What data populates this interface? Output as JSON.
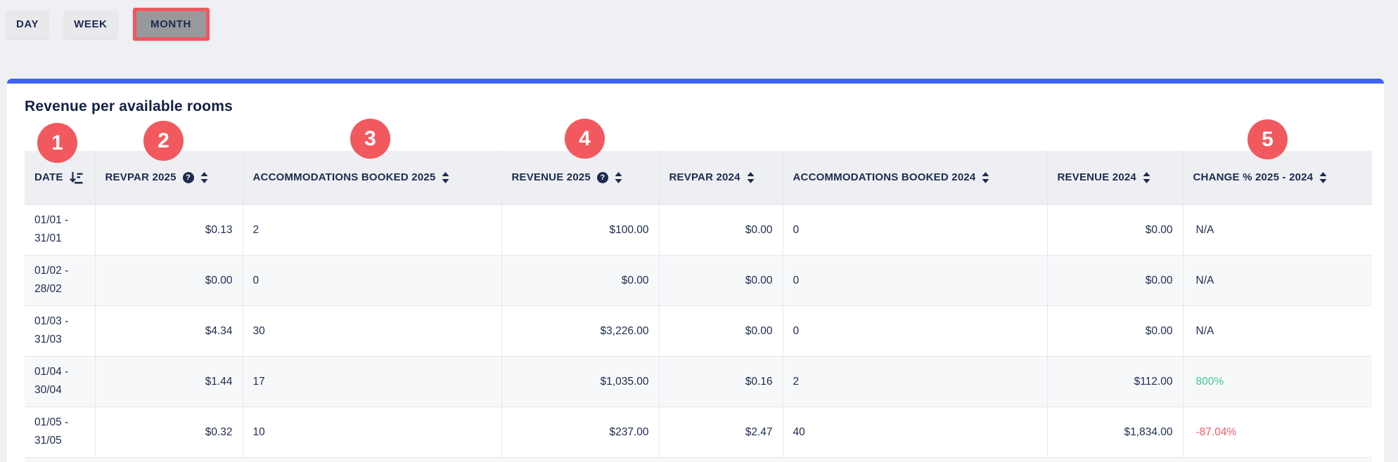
{
  "toolbar": {
    "buttons": [
      {
        "label": "DAY",
        "active": false
      },
      {
        "label": "WEEK",
        "active": false
      },
      {
        "label": "MONTH",
        "active": true
      }
    ]
  },
  "card": {
    "title": "Revenue per available rooms"
  },
  "annotations": [
    "1",
    "2",
    "3",
    "4",
    "5"
  ],
  "table": {
    "columns": [
      {
        "label": "DATE",
        "field": "date",
        "align": "left",
        "icons": [
          "sort-amount-icon"
        ]
      },
      {
        "label": "REVPAR 2025",
        "field": "revpar_2025",
        "align": "right",
        "icons": [
          "help-icon",
          "sort-icon"
        ]
      },
      {
        "label": "ACCOMMODATIONS BOOKED 2025",
        "field": "accommodations_booked_2025",
        "align": "left",
        "icons": [
          "sort-icon"
        ]
      },
      {
        "label": "REVENUE 2025",
        "field": "revenue_2025",
        "align": "right",
        "icons": [
          "help-icon",
          "sort-icon"
        ]
      },
      {
        "label": "REVPAR 2024",
        "field": "revpar_2024",
        "align": "right",
        "icons": [
          "sort-icon"
        ]
      },
      {
        "label": "ACCOMMODATIONS BOOKED 2024",
        "field": "accommodations_booked_2024",
        "align": "left",
        "icons": [
          "sort-icon"
        ]
      },
      {
        "label": "REVENUE 2024",
        "field": "revenue_2024",
        "align": "right",
        "icons": [
          "sort-icon"
        ]
      },
      {
        "label": "CHANGE %  2025 - 2024",
        "field": "change_pct",
        "align": "left",
        "icons": [
          "sort-icon"
        ]
      }
    ],
    "rows": [
      {
        "date": "01/01 - 31/01",
        "revpar_2025": "$0.13",
        "accommodations_booked_2025": "2",
        "revenue_2025": "$100.00",
        "revpar_2024": "$0.00",
        "accommodations_booked_2024": "0",
        "revenue_2024": "$0.00",
        "change_pct": "N/A",
        "change_style": "neutral"
      },
      {
        "date": "01/02 - 28/02",
        "revpar_2025": "$0.00",
        "accommodations_booked_2025": "0",
        "revenue_2025": "$0.00",
        "revpar_2024": "$0.00",
        "accommodations_booked_2024": "0",
        "revenue_2024": "$0.00",
        "change_pct": "N/A",
        "change_style": "neutral"
      },
      {
        "date": "01/03 - 31/03",
        "revpar_2025": "$4.34",
        "accommodations_booked_2025": "30",
        "revenue_2025": "$3,226.00",
        "revpar_2024": "$0.00",
        "accommodations_booked_2024": "0",
        "revenue_2024": "$0.00",
        "change_pct": "N/A",
        "change_style": "neutral"
      },
      {
        "date": "01/04 - 30/04",
        "revpar_2025": "$1.44",
        "accommodations_booked_2025": "17",
        "revenue_2025": "$1,035.00",
        "revpar_2024": "$0.16",
        "accommodations_booked_2024": "2",
        "revenue_2024": "$112.00",
        "change_pct": "800%",
        "change_style": "positive"
      },
      {
        "date": "01/05 - 31/05",
        "revpar_2025": "$0.32",
        "accommodations_booked_2025": "10",
        "revenue_2025": "$237.00",
        "revpar_2024": "$2.47",
        "accommodations_booked_2024": "40",
        "revenue_2024": "$1,834.00",
        "change_pct": "-87.04%",
        "change_style": "negative"
      }
    ]
  },
  "colors": {
    "accent_blue": "#3d63f3",
    "badge_red": "#f2595f",
    "active_button_border": "#f2575f",
    "active_button_bg": "#98999b",
    "positive_change": "#3dcf9d",
    "negative_change": "#f45a61",
    "text_navy": "#1d2b50"
  }
}
